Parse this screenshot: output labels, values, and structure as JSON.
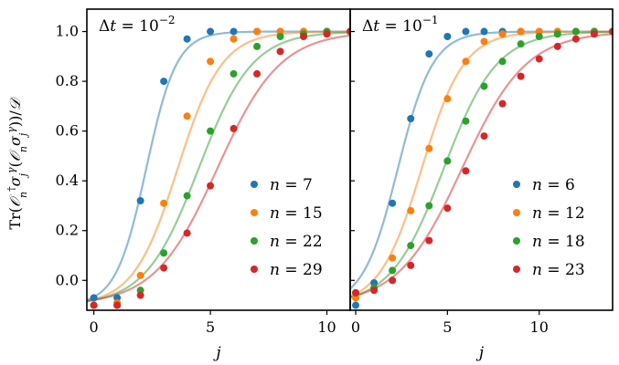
{
  "chart_data": [
    {
      "type": "scatter",
      "title": "Δt = 10⁻²",
      "xlabel": "j",
      "ylabel": "Tr(𝒪ₙ†σⱼᵞ𝒪ₙσⱼᵞ)/𝒟",
      "xlim": [
        -0.3,
        11.0
      ],
      "ylim": [
        -0.12,
        1.09
      ],
      "xticks": [
        0,
        5,
        10
      ],
      "yticks": [
        0.0,
        0.2,
        0.4,
        0.6,
        0.8,
        1.0
      ],
      "ytick_labels": [
        "0.0",
        "0.2",
        "0.4",
        "0.6",
        "0.8",
        "1.0"
      ],
      "legend_position": "lower-right",
      "series": [
        {
          "name": "n = 7",
          "color": "#1f77b4",
          "center": 2.25,
          "width": 0.65,
          "x": [
            0,
            1,
            2,
            3,
            4,
            5,
            6,
            7,
            8,
            9,
            10,
            11
          ],
          "y": [
            -0.07,
            -0.07,
            0.32,
            0.8,
            0.97,
            1.0,
            1.0,
            1.0,
            1.0,
            1.0,
            1.0,
            1.0
          ]
        },
        {
          "name": "n = 15",
          "color": "#ff7f0e",
          "center": 3.6,
          "width": 0.95,
          "x": [
            0,
            1,
            2,
            3,
            4,
            5,
            6,
            7,
            8,
            9,
            10,
            11
          ],
          "y": [
            -0.1,
            -0.09,
            0.02,
            0.31,
            0.66,
            0.88,
            0.97,
            1.0,
            1.0,
            1.0,
            1.0,
            1.0
          ]
        },
        {
          "name": "n = 22",
          "color": "#2ca02c",
          "center": 4.5,
          "width": 1.15,
          "x": [
            0,
            1,
            2,
            3,
            4,
            5,
            6,
            7,
            8,
            9,
            10,
            11
          ],
          "y": [
            -0.1,
            -0.1,
            -0.04,
            0.11,
            0.34,
            0.6,
            0.83,
            0.94,
            0.98,
            0.99,
            1.0,
            1.0
          ]
        },
        {
          "name": "n = 29",
          "color": "#d62728",
          "center": 5.3,
          "width": 1.35,
          "x": [
            0,
            1,
            2,
            3,
            4,
            5,
            6,
            7,
            8,
            9,
            10,
            11
          ],
          "y": [
            -0.1,
            -0.1,
            -0.06,
            0.05,
            0.19,
            0.38,
            0.61,
            0.83,
            0.92,
            0.98,
            0.99,
            1.0
          ]
        }
      ]
    },
    {
      "type": "scatter",
      "title": "Δt = 10⁻¹",
      "xlabel": "j",
      "xlim": [
        -0.3,
        14.0
      ],
      "ylim": [
        -0.12,
        1.09
      ],
      "xticks": [
        0,
        5,
        10
      ],
      "legend_position": "lower-right",
      "series": [
        {
          "name": "n = 6",
          "color": "#1f77b4",
          "center": 2.3,
          "width": 0.95,
          "x": [
            0,
            1,
            2,
            3,
            4,
            5,
            6,
            7,
            8,
            9,
            10,
            11,
            12,
            13,
            14
          ],
          "y": [
            -0.1,
            -0.01,
            0.31,
            0.65,
            0.91,
            0.98,
            1.0,
            1.0,
            1.0,
            1.0,
            1.0,
            1.0,
            1.0,
            1.0,
            1.0
          ]
        },
        {
          "name": "n = 12",
          "color": "#ff7f0e",
          "center": 3.6,
          "width": 1.15,
          "x": [
            0,
            1,
            2,
            3,
            4,
            5,
            6,
            7,
            8,
            9,
            10,
            11,
            12,
            13,
            14
          ],
          "y": [
            -0.07,
            -0.03,
            0.09,
            0.28,
            0.53,
            0.73,
            0.88,
            0.96,
            0.99,
            1.0,
            1.0,
            1.0,
            1.0,
            1.0,
            1.0
          ]
        },
        {
          "name": "n = 18",
          "color": "#2ca02c",
          "center": 4.8,
          "width": 1.45,
          "x": [
            0,
            1,
            2,
            3,
            4,
            5,
            6,
            7,
            8,
            9,
            10,
            11,
            12,
            13,
            14
          ],
          "y": [
            -0.05,
            -0.03,
            0.04,
            0.14,
            0.3,
            0.48,
            0.64,
            0.78,
            0.88,
            0.95,
            0.98,
            0.99,
            1.0,
            1.0,
            1.0
          ]
        },
        {
          "name": "n = 23",
          "color": "#d62728",
          "center": 5.8,
          "width": 1.75,
          "x": [
            0,
            1,
            2,
            3,
            4,
            5,
            6,
            7,
            8,
            9,
            10,
            11,
            12,
            13,
            14
          ],
          "y": [
            -0.05,
            -0.04,
            0.0,
            0.06,
            0.16,
            0.29,
            0.44,
            0.58,
            0.71,
            0.82,
            0.89,
            0.94,
            0.97,
            0.99,
            1.0
          ]
        }
      ]
    }
  ]
}
